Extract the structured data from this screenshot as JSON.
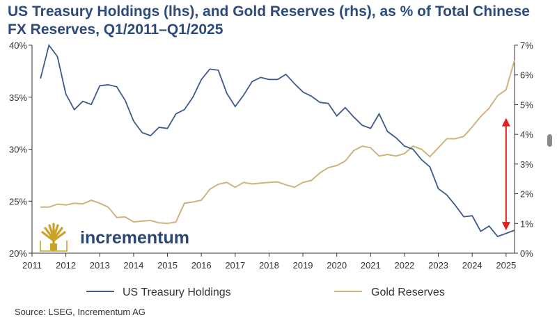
{
  "title": "US Treasury Holdings (lhs), and Gold Reserves (rhs), as % of Total Chinese FX Reserves, Q1/2011–Q1/2025",
  "source": "Source: LSEG, Incrementum AG",
  "logo_text": "incrementum",
  "colors": {
    "treasury": "#3d5a8a",
    "gold": "#cdb47e",
    "arrow": "#e0201b",
    "axis": "#333333",
    "logo": "#c9a227",
    "logo_text": "#2b4775"
  },
  "chart_data": {
    "type": "line",
    "title": "US Treasury Holdings (lhs), and Gold Reserves (rhs), as % of Total Chinese FX Reserves, Q1/2011–Q1/2025",
    "x_ticks": [
      "2011",
      "2012",
      "2013",
      "2014",
      "2015",
      "2016",
      "2017",
      "2018",
      "2019",
      "2020",
      "2021",
      "2022",
      "2023",
      "2024",
      "2025"
    ],
    "xlim": [
      2011,
      2025.25
    ],
    "left_axis": {
      "ylim": [
        20,
        40
      ],
      "ticks": [
        "20%",
        "25%",
        "30%",
        "35%",
        "40%"
      ],
      "tick_values": [
        20,
        25,
        30,
        35,
        40
      ]
    },
    "right_axis": {
      "ylim": [
        0,
        7
      ],
      "ticks": [
        "0%",
        "1%",
        "2%",
        "3%",
        "4%",
        "5%",
        "6%",
        "7%"
      ],
      "tick_values": [
        0,
        1,
        2,
        3,
        4,
        5,
        6,
        7
      ]
    },
    "legend_position": "bottom",
    "grid": false,
    "series": [
      {
        "name": "US Treasury Holdings",
        "axis": "left",
        "x": [
          2011.25,
          2011.5,
          2011.75,
          2012,
          2012.25,
          2012.5,
          2012.75,
          2013,
          2013.25,
          2013.5,
          2013.75,
          2014,
          2014.25,
          2014.5,
          2014.75,
          2015,
          2015.25,
          2015.5,
          2015.75,
          2016,
          2016.25,
          2016.5,
          2016.75,
          2017,
          2017.25,
          2017.5,
          2017.75,
          2018,
          2018.25,
          2018.5,
          2018.75,
          2019,
          2019.25,
          2019.5,
          2019.75,
          2020,
          2020.25,
          2020.5,
          2020.75,
          2021,
          2021.25,
          2021.5,
          2021.75,
          2022,
          2022.25,
          2022.5,
          2022.75,
          2023,
          2023.25,
          2023.5,
          2023.75,
          2024,
          2024.25,
          2024.5,
          2024.75,
          2025,
          2025.25
        ],
        "values": [
          36.8,
          40.0,
          38.9,
          35.3,
          33.8,
          34.6,
          34.3,
          36.1,
          36.2,
          36.0,
          34.7,
          32.7,
          31.6,
          31.3,
          32.1,
          32.0,
          33.4,
          33.8,
          35.0,
          36.7,
          37.7,
          37.6,
          35.4,
          34.1,
          35.2,
          36.5,
          36.9,
          36.7,
          36.7,
          37.2,
          36.3,
          35.5,
          35.1,
          34.5,
          34.4,
          33.2,
          34.0,
          33.1,
          32.3,
          32.0,
          33.4,
          31.7,
          31.1,
          30.3,
          30.0,
          29.0,
          28.3,
          26.2,
          25.6,
          24.6,
          23.5,
          23.6,
          22.1,
          22.6,
          21.6,
          21.9,
          22.2
        ]
      },
      {
        "name": "Gold Reserves",
        "axis": "right",
        "x": [
          2011.25,
          2011.5,
          2011.75,
          2012,
          2012.25,
          2012.5,
          2012.75,
          2013,
          2013.25,
          2013.5,
          2013.75,
          2014,
          2014.25,
          2014.5,
          2014.75,
          2015,
          2015.25,
          2015.5,
          2015.75,
          2016,
          2016.25,
          2016.5,
          2016.75,
          2017,
          2017.25,
          2017.5,
          2017.75,
          2018,
          2018.25,
          2018.5,
          2018.75,
          2019,
          2019.25,
          2019.5,
          2019.75,
          2020,
          2020.25,
          2020.5,
          2020.75,
          2021,
          2021.25,
          2021.5,
          2021.75,
          2022,
          2022.25,
          2022.5,
          2022.75,
          2023,
          2023.25,
          2023.5,
          2023.75,
          2024,
          2024.25,
          2024.5,
          2024.75,
          2025,
          2025.25
        ],
        "values": [
          1.55,
          1.55,
          1.65,
          1.62,
          1.68,
          1.66,
          1.78,
          1.68,
          1.55,
          1.2,
          1.22,
          1.05,
          1.08,
          1.1,
          1.02,
          1.0,
          1.05,
          1.68,
          1.72,
          1.78,
          2.15,
          2.32,
          2.38,
          2.22,
          2.38,
          2.33,
          2.36,
          2.38,
          2.4,
          2.3,
          2.22,
          2.38,
          2.45,
          2.7,
          2.88,
          2.95,
          3.1,
          3.45,
          3.6,
          3.55,
          3.27,
          3.32,
          3.27,
          3.35,
          3.6,
          3.5,
          3.25,
          3.55,
          3.85,
          3.85,
          3.93,
          4.25,
          4.6,
          4.88,
          5.3,
          5.5,
          6.5
        ]
      }
    ],
    "annotations": [
      {
        "type": "double-arrow",
        "x": 2025,
        "from_lhs": 22.2,
        "to_lhs": 33.0
      }
    ]
  },
  "legend": [
    {
      "label": "US Treasury Holdings",
      "color": "#3d5a8a"
    },
    {
      "label": "Gold Reserves",
      "color": "#cdb47e"
    }
  ]
}
